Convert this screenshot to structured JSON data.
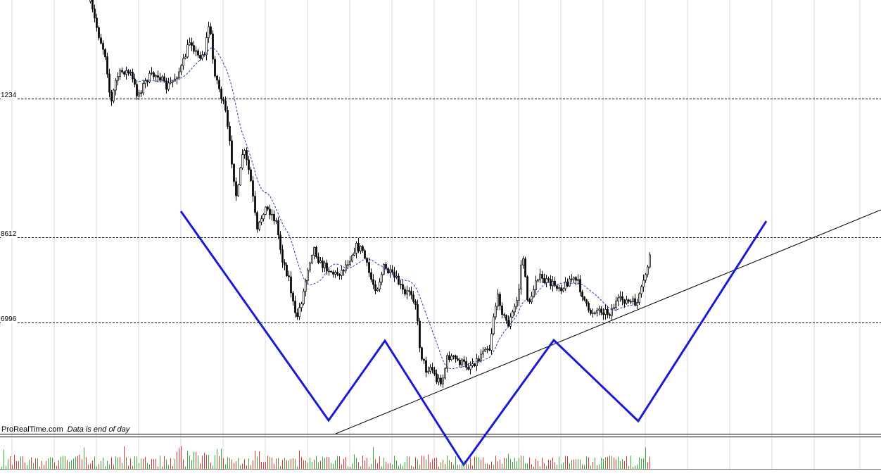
{
  "chart_data": {
    "type": "candlestick",
    "source_label": "ProRealTime.com",
    "data_note": "Data is end of day",
    "price_levels": [
      "1234",
      "8612",
      "6996"
    ],
    "colors": {
      "candle": "#000000",
      "moving_average": "#1f3fbf",
      "pattern": "#1a1ad6",
      "trendline": "#000000",
      "grid": "#000000",
      "volume_up": "#33aa33",
      "volume_down": "#dd3333"
    },
    "annotations": [
      "inverse head and shoulders pattern",
      "rising trendline",
      "moving average"
    ],
    "volume_panel": true
  }
}
